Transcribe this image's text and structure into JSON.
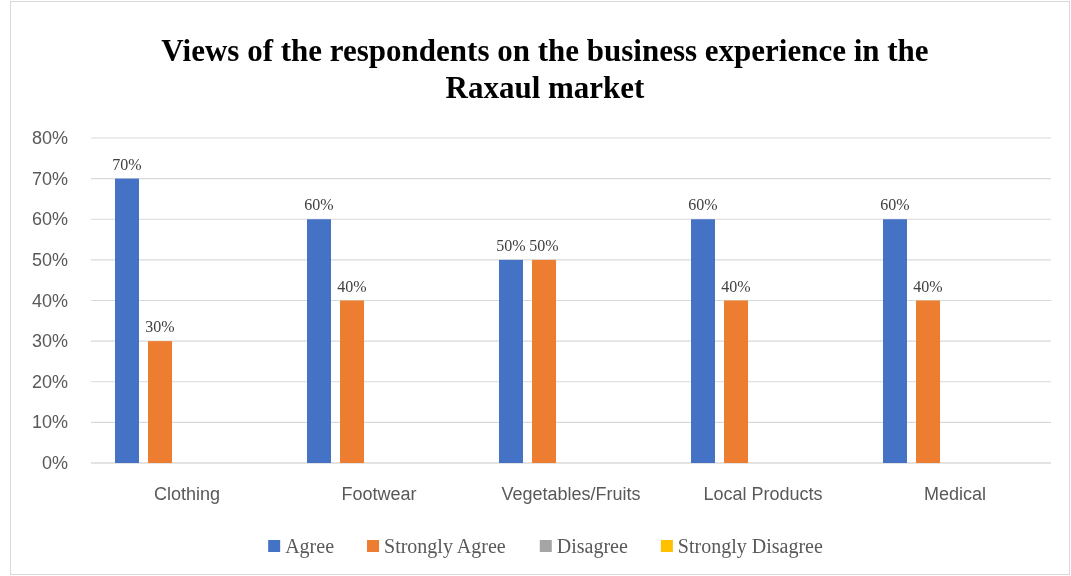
{
  "chart_data": {
    "type": "bar",
    "title": "Views of the respondents on the business experience in the Raxaul market",
    "categories": [
      "Clothing",
      "Footwear",
      "Vegetables/Fruits",
      "Local Products",
      "Medical"
    ],
    "series": [
      {
        "name": "Agree",
        "color": "#4472c4",
        "values": [
          70,
          60,
          50,
          60,
          60
        ],
        "value_labels": [
          "70%",
          "60%",
          "50%",
          "60%",
          "60%"
        ]
      },
      {
        "name": "Strongly Agree",
        "color": "#ed7d31",
        "values": [
          30,
          40,
          50,
          40,
          40
        ],
        "value_labels": [
          "30%",
          "40%",
          "50%",
          "40%",
          "40%"
        ]
      },
      {
        "name": "Disagree",
        "color": "#a5a5a5",
        "values": [
          null,
          null,
          null,
          null,
          null
        ]
      },
      {
        "name": "Strongly Disagree",
        "color": "#ffc000",
        "values": [
          null,
          null,
          null,
          null,
          null
        ]
      }
    ],
    "ylim": [
      0,
      80
    ],
    "yticks": [
      {
        "value": 0,
        "label": "0%"
      },
      {
        "value": 10,
        "label": "10%"
      },
      {
        "value": 20,
        "label": "20%"
      },
      {
        "value": 30,
        "label": "30%"
      },
      {
        "value": 40,
        "label": "40%"
      },
      {
        "value": 50,
        "label": "50%"
      },
      {
        "value": 60,
        "label": "60%"
      },
      {
        "value": 70,
        "label": "70%"
      },
      {
        "value": 80,
        "label": "80%"
      }
    ],
    "grid": "y",
    "legend": "bottom"
  }
}
